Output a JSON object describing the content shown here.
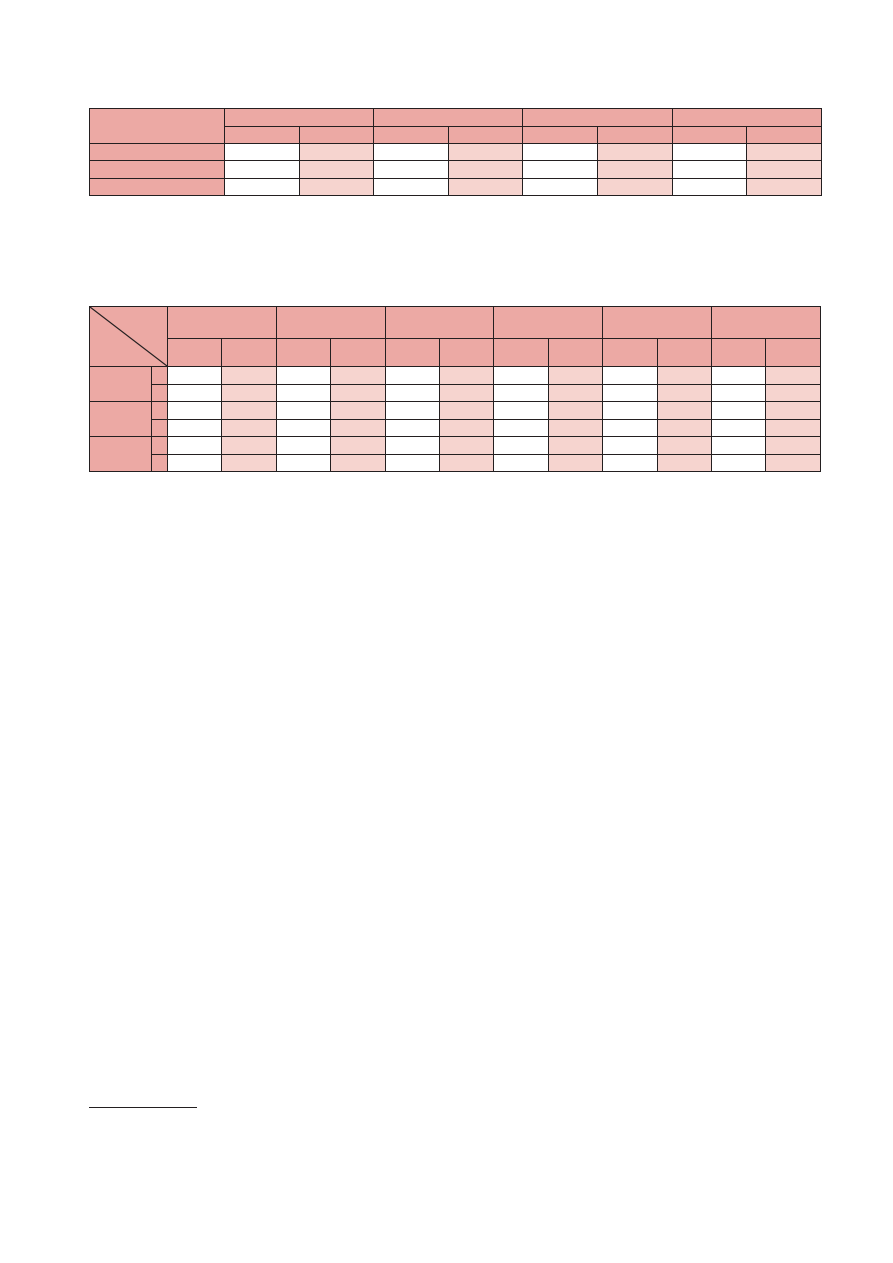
{
  "colors": {
    "header_fill": "#eca9a4",
    "light_fill": "#f6d4cf",
    "white_fill": "#ffffff",
    "border": "#231f20"
  },
  "table1": {
    "column_groups": 4,
    "subcolumns_per_group": 2,
    "body_rows": 3,
    "cells": "empty"
  },
  "table2": {
    "column_groups": 6,
    "subcolumns_per_group": 2,
    "row_groups": 3,
    "subrows_per_group": 2,
    "corner": "diagonal-split",
    "cells": "empty"
  },
  "footnote": {
    "separator": true
  }
}
